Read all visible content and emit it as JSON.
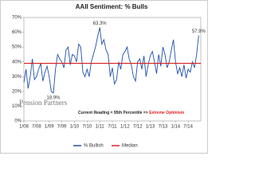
{
  "chart_data": {
    "type": "line",
    "title": "AAII Sentiment: % Bulls",
    "logo": "Pension Partners",
    "note": "Current Reading = 95th Percentile =>",
    "note_highlight": "Extreme Optimism",
    "x": [
      0,
      1,
      2,
      3,
      4,
      5,
      6,
      7,
      8,
      9,
      10,
      11,
      12,
      13,
      14,
      15,
      16,
      17,
      18,
      19,
      20,
      21,
      22,
      23,
      24,
      25,
      26,
      27,
      28,
      29,
      30,
      31,
      32,
      33,
      34,
      35,
      36,
      37,
      38,
      39,
      40,
      41,
      42,
      43,
      44,
      45,
      46,
      47,
      48,
      49,
      50,
      51,
      52,
      53,
      54,
      55,
      56,
      57,
      58,
      59,
      60,
      61,
      62,
      63,
      64,
      65,
      66,
      67,
      68,
      69,
      70,
      71,
      72,
      73,
      74,
      75,
      76,
      77,
      78,
      79,
      80,
      81,
      82,
      83
    ],
    "series": [
      {
        "name": "% Bullish",
        "color": "#1f4fa8",
        "values": [
          26,
          35,
          22,
          30,
          42,
          28,
          30,
          35,
          39,
          27,
          33,
          37,
          30,
          20,
          18.9,
          35,
          45,
          42,
          40,
          36,
          48,
          50,
          38,
          45,
          44,
          40,
          52,
          50,
          33,
          30,
          35,
          30,
          40,
          45,
          50,
          57,
          63.3,
          52,
          55,
          48,
          45,
          30,
          36,
          25,
          28,
          40,
          35,
          45,
          47,
          50,
          42,
          38,
          30,
          27,
          40,
          42,
          35,
          44,
          30,
          38,
          44,
          47,
          40,
          32,
          45,
          37,
          50,
          45,
          36,
          40,
          48,
          55,
          40,
          32,
          36,
          30,
          38,
          29,
          35,
          33,
          40,
          36,
          45,
          57.9
        ]
      }
    ],
    "reference_lines": [
      {
        "name": "Median",
        "value": 39,
        "color": "#d62020"
      }
    ],
    "annotations": [
      {
        "text": "63.3%",
        "x": 36,
        "y": 63.3
      },
      {
        "text": "18.9%",
        "x": 14,
        "y": 18.9
      },
      {
        "text": "57.9%",
        "x": 83,
        "y": 57.9
      }
    ],
    "xlim": [
      0,
      84
    ],
    "xticks": [
      {
        "value": 0,
        "label": "1/08"
      },
      {
        "value": 6,
        "label": "7/08"
      },
      {
        "value": 12,
        "label": "1/09"
      },
      {
        "value": 18,
        "label": "7/09"
      },
      {
        "value": 24,
        "label": "1/10"
      },
      {
        "value": 30,
        "label": "7/10"
      },
      {
        "value": 36,
        "label": "1/11"
      },
      {
        "value": 42,
        "label": "7/11"
      },
      {
        "value": 48,
        "label": "1/12"
      },
      {
        "value": 54,
        "label": "7/12"
      },
      {
        "value": 60,
        "label": "1/13"
      },
      {
        "value": 66,
        "label": "7/13"
      },
      {
        "value": 72,
        "label": "1/14"
      },
      {
        "value": 78,
        "label": "7/14"
      }
    ],
    "ylim": [
      0,
      70
    ],
    "yticks": [
      {
        "value": 0,
        "label": "0%"
      },
      {
        "value": 10,
        "label": "10%"
      },
      {
        "value": 20,
        "label": "20%"
      },
      {
        "value": 30,
        "label": "30%"
      },
      {
        "value": 40,
        "label": "40%"
      },
      {
        "value": 50,
        "label": "50%"
      },
      {
        "value": 60,
        "label": "60%"
      },
      {
        "value": 70,
        "label": "70%"
      }
    ],
    "grid": false
  }
}
